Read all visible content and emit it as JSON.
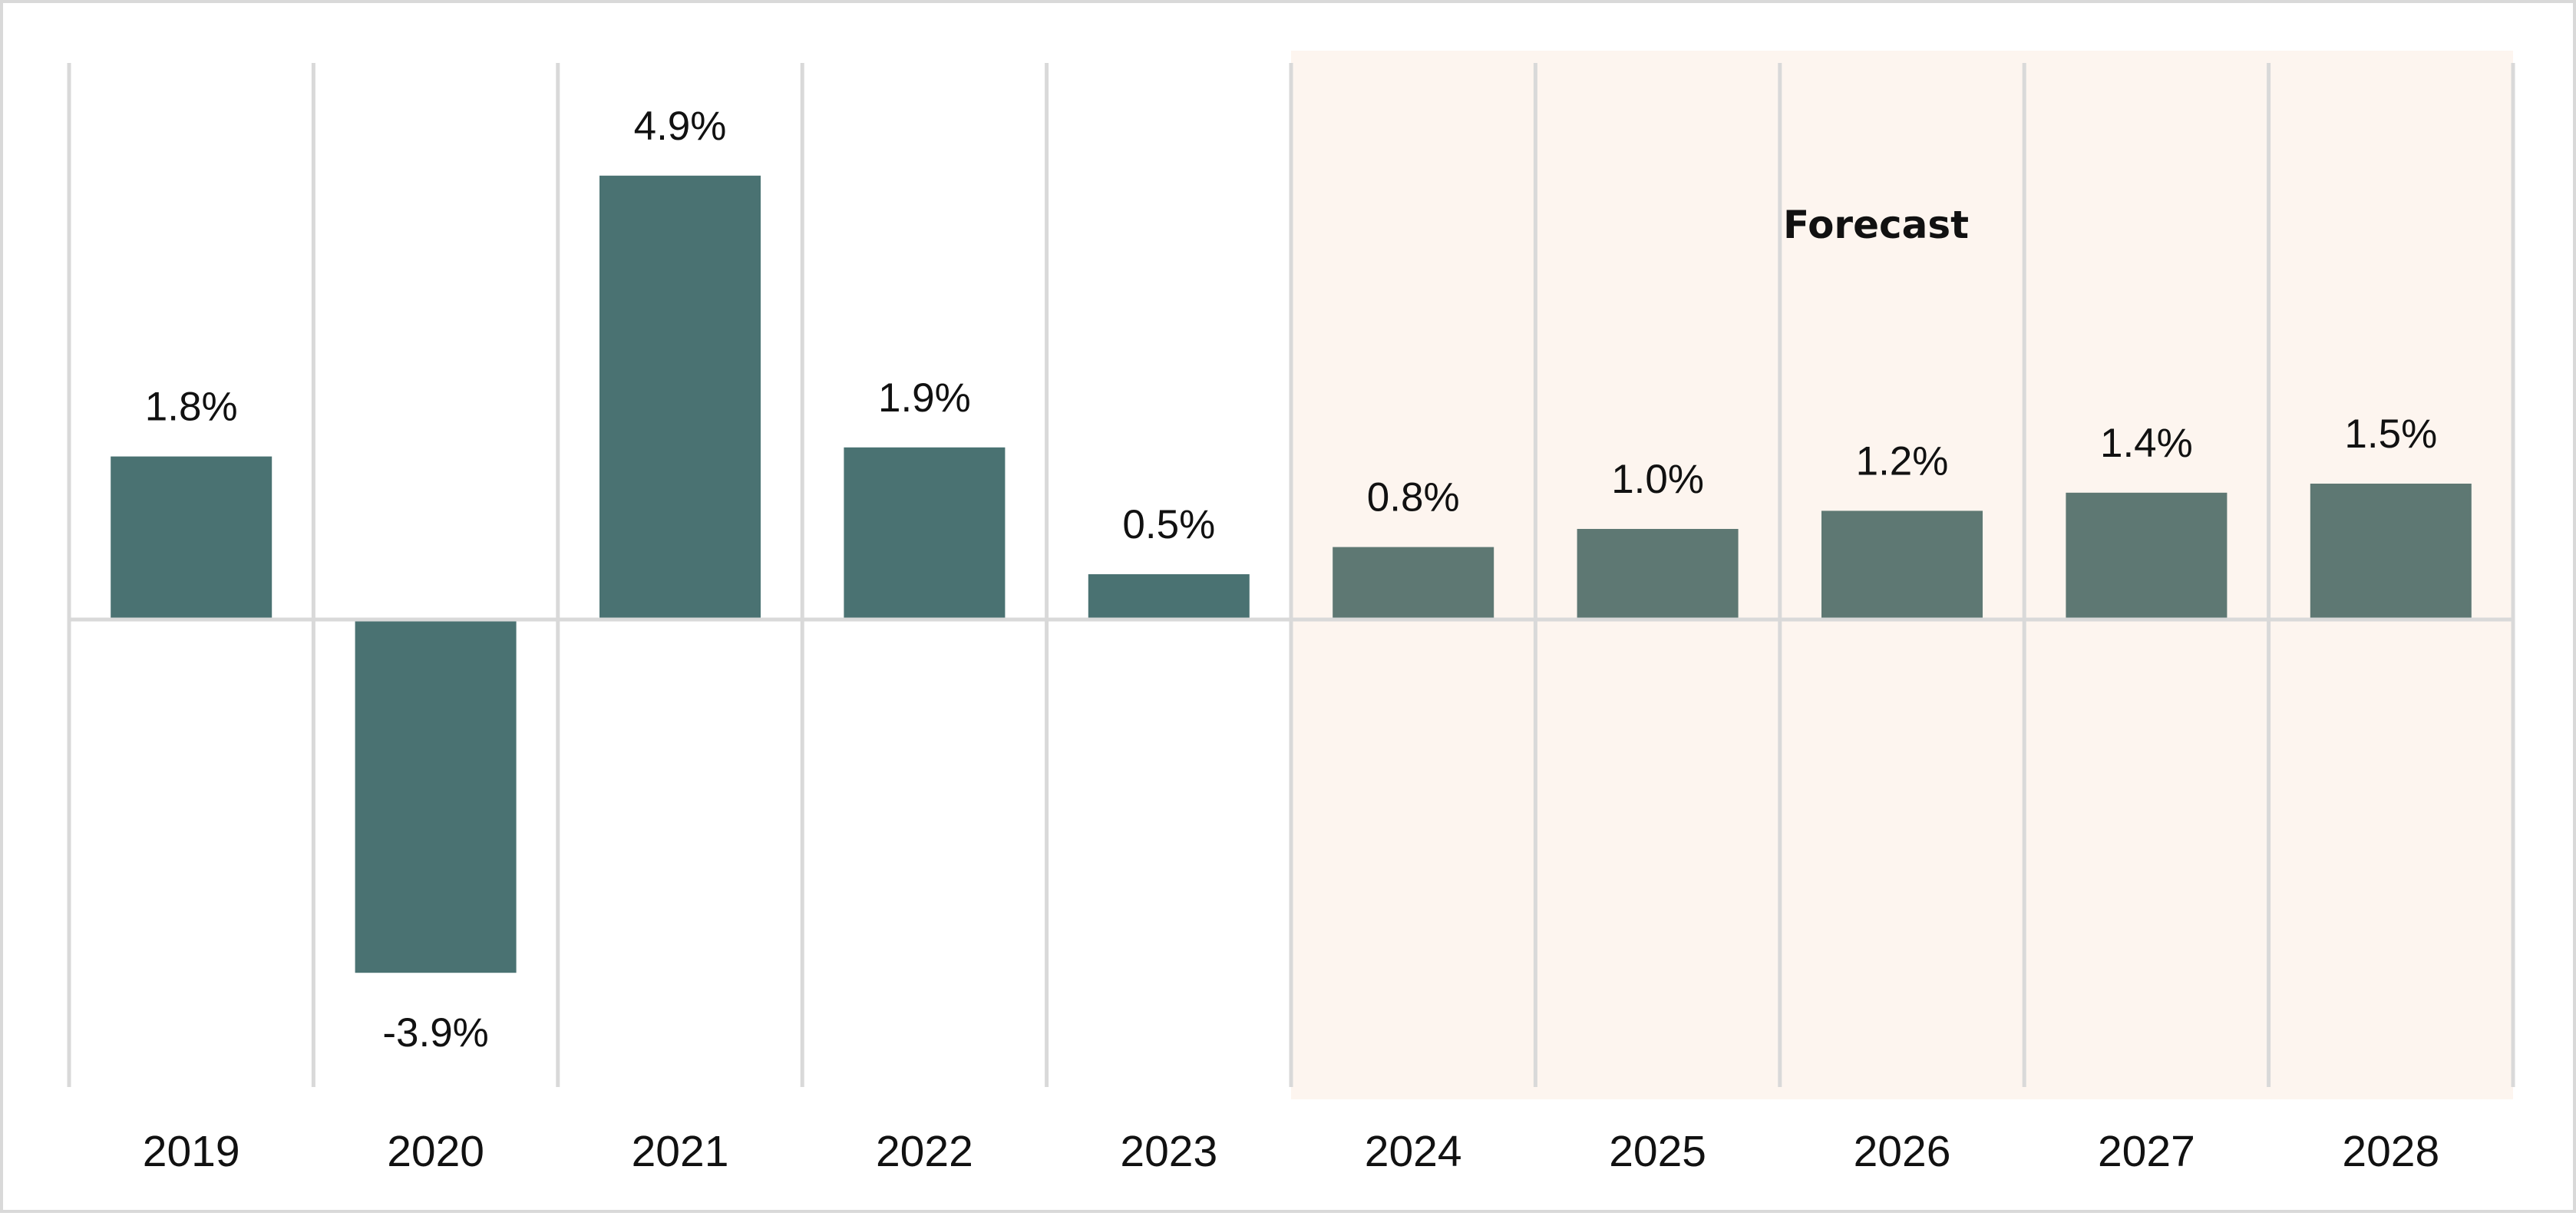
{
  "chart_data": {
    "type": "bar",
    "categories": [
      "2019",
      "2020",
      "2021",
      "2022",
      "2023",
      "2024",
      "2025",
      "2026",
      "2027",
      "2028"
    ],
    "values": [
      1.8,
      -3.9,
      4.9,
      1.9,
      0.5,
      0.8,
      1.0,
      1.2,
      1.4,
      1.5
    ],
    "value_labels": [
      "1.8%",
      "-3.9%",
      "4.9%",
      "1.9%",
      "0.5%",
      "0.8%",
      "1.0%",
      "1.2%",
      "1.4%",
      "1.5%"
    ],
    "title": "",
    "xlabel": "",
    "ylabel": "",
    "ylim": [
      -5.0,
      6.3
    ],
    "grid": "vertical",
    "legend": "none",
    "annotation": {
      "text": "Forecast",
      "range": [
        "2024",
        "2028"
      ]
    },
    "colors": {
      "actual_bar": "#4a7272",
      "forecast_bar": "#5e7873",
      "forecast_background": "#fdf5ef",
      "gridline": "#d9d9d9"
    }
  }
}
